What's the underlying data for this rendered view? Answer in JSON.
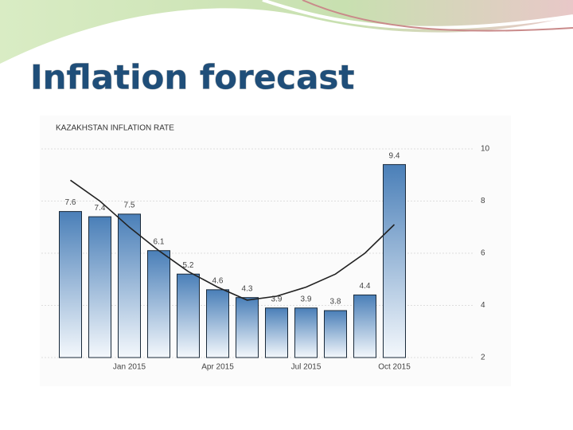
{
  "slide_title": "Inflation forecast",
  "chart_data": {
    "type": "bar",
    "title": "KAZAKHSTAN INFLATION RATE",
    "categories": [
      null,
      null,
      "Jan 2015",
      null,
      null,
      "Apr 2015",
      null,
      null,
      "Jul 2015",
      null,
      null,
      "Oct 2015"
    ],
    "values": [
      7.6,
      7.4,
      7.5,
      6.1,
      5.2,
      4.6,
      4.3,
      3.9,
      3.9,
      3.8,
      4.4,
      9.4
    ],
    "color": "#4a7fb8",
    "trend": [
      8.8,
      8.0,
      7.0,
      6.1,
      5.3,
      4.7,
      4.2,
      4.35,
      4.7,
      5.2,
      6.0,
      7.1
    ],
    "trend_color": "#222222",
    "ylim": [
      2,
      10
    ],
    "yticks": [
      2,
      4,
      6,
      8,
      10
    ],
    "y_axis_side": "right",
    "grid": true
  }
}
